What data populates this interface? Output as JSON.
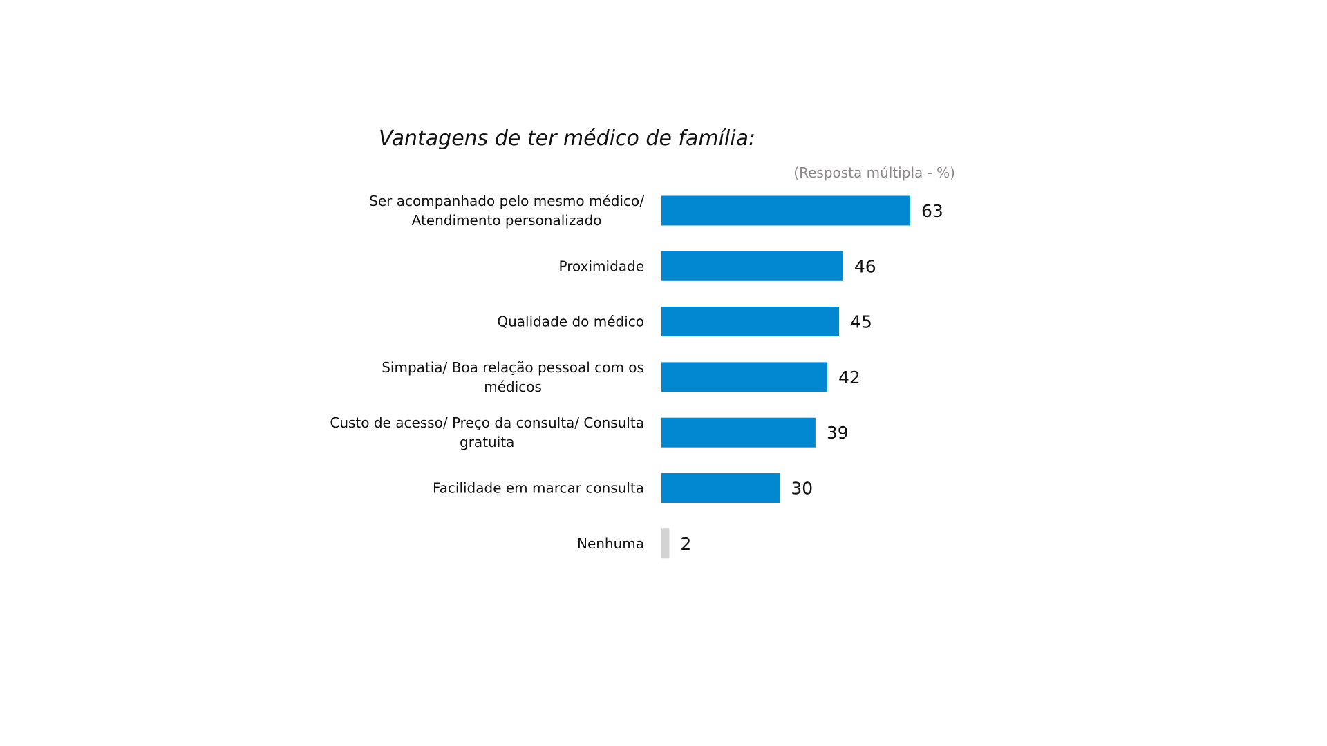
{
  "chart_data": {
    "type": "bar",
    "orientation": "horizontal",
    "title": "Vantagens de ter médico de família:",
    "subtitle": "(Resposta múltipla - %)",
    "categories": [
      [
        "Ser acompanhado pelo mesmo médico/",
        "Atendimento personalizado"
      ],
      [
        "Proximidade"
      ],
      [
        "Qualidade do médico"
      ],
      [
        "Simpatia/ Boa relação pessoal com os",
        "médicos"
      ],
      [
        "Custo de acesso/ Preço da consulta/ Consulta",
        "gratuita"
      ],
      [
        "Facilidade em marcar consulta"
      ],
      [
        "Nenhuma"
      ]
    ],
    "values": [
      63,
      46,
      45,
      42,
      39,
      30,
      2
    ],
    "bar_colors": [
      "#0288d1",
      "#0288d1",
      "#0288d1",
      "#0288d1",
      "#0288d1",
      "#0288d1",
      "#d3d3d3"
    ],
    "xlim": [
      0,
      63
    ],
    "grid": false,
    "legend": "none"
  }
}
